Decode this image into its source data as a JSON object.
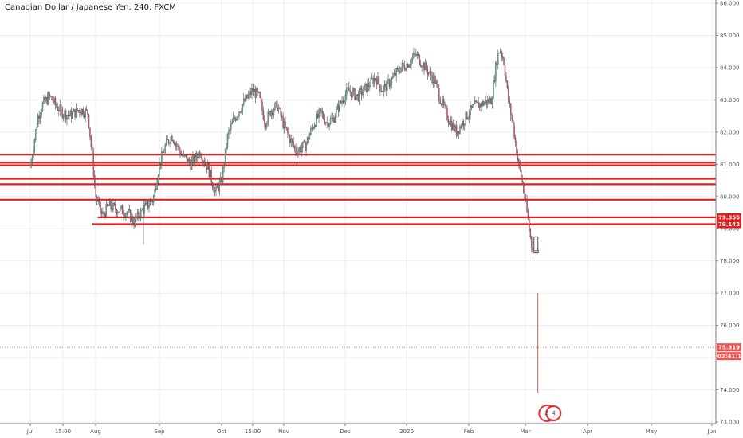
{
  "chart_data": {
    "type": "candlestick",
    "title": "Canadian Dollar / Japanese Yen, 240, FXCM",
    "ylim": [
      72.95,
      86.1
    ],
    "xlim": [
      0,
      932
    ],
    "x_ticks": [
      {
        "label": "Jul",
        "month_index": 0
      },
      {
        "label": "15:00",
        "month_index": 0.5
      },
      {
        "label": "Aug",
        "month_index": 1
      },
      {
        "label": "Sep",
        "month_index": 2
      },
      {
        "label": "Oct",
        "month_index": 3
      },
      {
        "label": "15:00",
        "month_index": 3.5
      },
      {
        "label": "Nov",
        "month_index": 4
      },
      {
        "label": "Dec",
        "month_index": 5
      },
      {
        "label": "2020",
        "month_index": 6
      },
      {
        "label": "Feb",
        "month_index": 7
      },
      {
        "label": "Mar",
        "month_index": 8
      },
      {
        "label": "Apr",
        "month_index": 9
      },
      {
        "label": "May",
        "month_index": 10
      },
      {
        "label": "Jun",
        "month_index": 11
      }
    ],
    "y_ticks": [
      "73.000",
      "74.000",
      "75.000",
      "76.000",
      "77.000",
      "78.000",
      "79.000",
      "80.000",
      "81.000",
      "82.000",
      "83.000",
      "84.000",
      "85.000",
      "86.000"
    ],
    "price_path": [
      [
        0,
        80.9
      ],
      [
        0.05,
        81.6
      ],
      [
        0.12,
        82.5
      ],
      [
        0.2,
        82.9
      ],
      [
        0.3,
        83.1
      ],
      [
        0.4,
        82.8
      ],
      [
        0.5,
        82.6
      ],
      [
        0.6,
        82.5
      ],
      [
        0.75,
        82.7
      ],
      [
        0.88,
        82.6
      ],
      [
        0.95,
        81.2
      ],
      [
        1.0,
        80.0
      ],
      [
        1.1,
        79.4
      ],
      [
        1.2,
        79.7
      ],
      [
        1.35,
        79.6
      ],
      [
        1.5,
        79.5
      ],
      [
        1.6,
        79.2
      ],
      [
        1.75,
        79.6
      ],
      [
        1.9,
        79.9
      ],
      [
        2.0,
        81.0
      ],
      [
        2.1,
        81.6
      ],
      [
        2.2,
        81.9
      ],
      [
        2.35,
        81.3
      ],
      [
        2.5,
        81.0
      ],
      [
        2.65,
        81.4
      ],
      [
        2.78,
        80.9
      ],
      [
        2.9,
        80.1
      ],
      [
        3.0,
        80.5
      ],
      [
        3.1,
        81.9
      ],
      [
        3.2,
        82.4
      ],
      [
        3.35,
        82.9
      ],
      [
        3.5,
        83.3
      ],
      [
        3.6,
        83.1
      ],
      [
        3.7,
        82.3
      ],
      [
        3.8,
        82.7
      ],
      [
        3.9,
        82.8
      ],
      [
        4.0,
        82.2
      ],
      [
        4.1,
        81.8
      ],
      [
        4.2,
        81.4
      ],
      [
        4.35,
        81.6
      ],
      [
        4.5,
        82.3
      ],
      [
        4.6,
        82.6
      ],
      [
        4.7,
        82.3
      ],
      [
        4.8,
        82.4
      ],
      [
        4.95,
        83.0
      ],
      [
        5.05,
        83.3
      ],
      [
        5.2,
        83.1
      ],
      [
        5.35,
        83.4
      ],
      [
        5.5,
        83.7
      ],
      [
        5.6,
        83.3
      ],
      [
        5.75,
        83.6
      ],
      [
        5.9,
        84.0
      ],
      [
        6.0,
        84.1
      ],
      [
        6.15,
        84.4
      ],
      [
        6.3,
        84.0
      ],
      [
        6.45,
        83.6
      ],
      [
        6.55,
        83.0
      ],
      [
        6.65,
        82.5
      ],
      [
        6.8,
        82.0
      ],
      [
        6.9,
        82.3
      ],
      [
        7.0,
        82.6
      ],
      [
        7.1,
        82.8
      ],
      [
        7.25,
        82.9
      ],
      [
        7.4,
        83.0
      ],
      [
        7.5,
        84.3
      ],
      [
        7.55,
        84.6
      ],
      [
        7.62,
        84.2
      ],
      [
        7.7,
        83.0
      ],
      [
        7.8,
        82.0
      ],
      [
        7.88,
        81.0
      ],
      [
        7.95,
        80.4
      ],
      [
        8.02,
        79.6
      ],
      [
        8.1,
        78.5
      ],
      [
        8.13,
        78.3
      ]
    ],
    "current_price": 75.319,
    "spike_low": 73.9,
    "spike_high": 77.0,
    "horizontal_levels": [
      {
        "value": 81.3,
        "start": 0
      },
      {
        "value": 81.05,
        "start": 0
      },
      {
        "value": 80.97,
        "start": 0
      },
      {
        "value": 80.55,
        "start": 0
      },
      {
        "value": 80.38,
        "start": 0
      },
      {
        "value": 79.9,
        "start": 0
      },
      {
        "value": 79.355,
        "start": 1.03,
        "label": "79.355"
      },
      {
        "value": 79.142,
        "start": 0.95,
        "label": "79.142"
      }
    ],
    "price_labels": {
      "current": "75.319",
      "countdown": "02:41:18"
    },
    "event_badges": [
      "2",
      "4"
    ],
    "colors": {
      "up": "#53b987",
      "down": "#eb4d5c",
      "candle": "#434651",
      "level": "#e0201e",
      "badge": "#e0201e",
      "current": "#ef5350",
      "grid": "#e9ecf0"
    }
  }
}
